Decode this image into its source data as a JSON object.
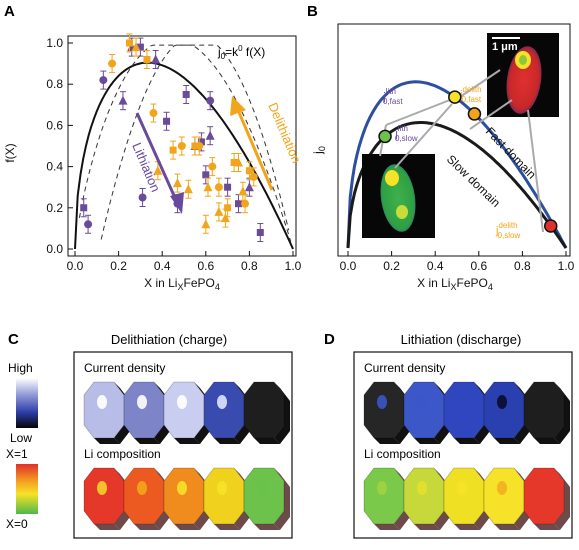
{
  "colors": {
    "purple": "#6a4a9a",
    "orange": "#f2a51a",
    "blue_curve": "#2c4fa0",
    "dark_curve": "#1a1a1a",
    "green_dot": "#6cc24a",
    "yellow_dot": "#f6e228",
    "red_dot": "#e0302c"
  },
  "panels": {
    "A": {
      "letter": "A",
      "equation": "j",
      "equation_sub": "0",
      "equation_rest": "=k",
      "equation_sup": "0",
      "equation_tail": " f(X)",
      "ylabel": "f(X)",
      "xlabel_main": "X in Li",
      "xlabel_sub": "X",
      "xlabel_tail": "FePO",
      "xlabel_sub2": "4",
      "delithiation": "Delithiation",
      "lithiation": "Lithiation"
    },
    "B": {
      "letter": "B",
      "ylabel": "j",
      "ylabel_sub": "0",
      "xlabel_main": "X in Li",
      "xlabel_sub": "X",
      "xlabel_tail": "FePO",
      "xlabel_sub2": "4",
      "scale_bar": "1 μm",
      "fast_domain": "Fast domain",
      "slow_domain": "Slow domain",
      "label_lith_fast_base": "j",
      "label_lith_fast_sub": "0,fast",
      "label_lith_fast_sup": "lith",
      "label_delith_fast_base": "j",
      "label_delith_fast_sub": "0,fast",
      "label_delith_fast_sup": "delith",
      "label_lith_slow_base": "j",
      "label_lith_slow_sub": "0,slow",
      "label_lith_slow_sup": "lith",
      "label_delith_slow_base": "j",
      "label_delith_slow_sub": "0,slow",
      "label_delith_slow_sup": "delith"
    },
    "C": {
      "letter": "C",
      "title": "Delithiation (charge)",
      "row1": "Current density",
      "row2": "Li composition",
      "cd_colors": [
        "#b8bde8",
        "#7d84c8",
        "#c9cdf0",
        "#3a4bb0",
        "#1e1e1e"
      ],
      "cd_spot": [
        "#ffffff",
        "#ffffff",
        "#ffffff",
        "#dfe3ff",
        "#1e1e1e"
      ],
      "li_colors": [
        "#e6382a",
        "#ec5a22",
        "#f08c1e",
        "#f0d21e",
        "#6cc24a"
      ],
      "li_spot": [
        "#f4d02a",
        "#f2a51a",
        "#f6e228",
        "#f6e228",
        "#6cc24a"
      ]
    },
    "D": {
      "letter": "D",
      "title": "Lithiation (discharge)",
      "row1": "Current density",
      "row2": "Li composition",
      "cd_colors": [
        "#262626",
        "#3b57c8",
        "#2f46bf",
        "#2a3fb0",
        "#1e1e1e"
      ],
      "cd_spot": [
        "#3b57c8",
        "#3b57c8",
        "#2f46bf",
        "#0b0b30",
        "#1e1e1e"
      ],
      "li_colors": [
        "#7ac94a",
        "#c7d93a",
        "#f0e024",
        "#f6e228",
        "#e6382a"
      ],
      "li_spot": [
        "#a0d23e",
        "#e4e02c",
        "#f6e228",
        "#f4ae22",
        "#e6382a"
      ]
    },
    "colorbar": {
      "high": "High",
      "low": "Low",
      "x1": "X=1",
      "x0": "X=0"
    }
  },
  "chart_data": [
    {
      "type": "scatter",
      "panel": "A",
      "xlim": [
        0,
        1
      ],
      "ylim": [
        0,
        1.05
      ],
      "x_ticks": [
        "0.0",
        "0.2",
        "0.4",
        "0.6",
        "0.8",
        "1.0"
      ],
      "y_ticks": [
        "0.0",
        "0.2",
        "0.4",
        "0.6",
        "0.8",
        "1.0"
      ],
      "series": [
        {
          "marker": "square",
          "color": "purple",
          "points": [
            [
              0.04,
              0.2
            ],
            [
              0.3,
              0.98
            ],
            [
              0.6,
              0.36
            ],
            [
              0.7,
              0.3
            ],
            [
              0.75,
              0.22
            ],
            [
              0.85,
              0.08
            ],
            [
              0.58,
              0.52
            ],
            [
              0.42,
              0.62
            ],
            [
              0.51,
              0.75
            ]
          ]
        },
        {
          "marker": "triangle",
          "color": "purple",
          "points": [
            [
              0.22,
              0.72
            ],
            [
              0.26,
              0.98
            ],
            [
              0.37,
              0.92
            ],
            [
              0.55,
              0.5
            ],
            [
              0.62,
              0.55
            ],
            [
              0.8,
              0.3
            ]
          ]
        },
        {
          "marker": "circle",
          "color": "purple",
          "points": [
            [
              0.06,
              0.12
            ],
            [
              0.13,
              0.82
            ],
            [
              0.31,
              0.25
            ],
            [
              0.47,
              0.22
            ],
            [
              0.62,
              0.72
            ]
          ]
        },
        {
          "marker": "square",
          "color": "orange",
          "points": [
            [
              0.25,
              1.0
            ],
            [
              0.33,
              0.92
            ],
            [
              0.45,
              0.48
            ],
            [
              0.55,
              0.5
            ],
            [
              0.73,
              0.42
            ],
            [
              0.8,
              0.38
            ],
            [
              0.7,
              0.2
            ]
          ]
        },
        {
          "marker": "circle",
          "color": "orange",
          "points": [
            [
              0.17,
              0.9
            ],
            [
              0.36,
              0.66
            ],
            [
              0.49,
              0.5
            ],
            [
              0.57,
              0.5
            ],
            [
              0.63,
              0.4
            ],
            [
              0.66,
              0.3
            ],
            [
              0.78,
              0.22
            ],
            [
              0.82,
              0.35
            ]
          ]
        },
        {
          "marker": "triangle",
          "color": "orange",
          "points": [
            [
              0.28,
              0.98
            ],
            [
              0.38,
              0.38
            ],
            [
              0.47,
              0.32
            ],
            [
              0.52,
              0.29
            ],
            [
              0.61,
              0.3
            ],
            [
              0.66,
              0.18
            ],
            [
              0.69,
              0.15
            ],
            [
              0.75,
              0.42
            ],
            [
              0.77,
              0.28
            ],
            [
              0.6,
              0.12
            ]
          ]
        }
      ]
    },
    {
      "type": "line",
      "panel": "B",
      "xlim": [
        0,
        1
      ],
      "x_ticks": [
        "0.0",
        "0.2",
        "0.4",
        "0.6",
        "0.8",
        "1.0"
      ],
      "highlight_points": [
        {
          "x": 0.17,
          "curve": "slow",
          "color": "green_dot"
        },
        {
          "x": 0.49,
          "curve": "fast",
          "color": "yellow_dot"
        },
        {
          "x": 0.58,
          "curve": "fast",
          "color": "orange"
        },
        {
          "x": 0.93,
          "curve": "slow",
          "color": "red_dot"
        }
      ]
    }
  ]
}
